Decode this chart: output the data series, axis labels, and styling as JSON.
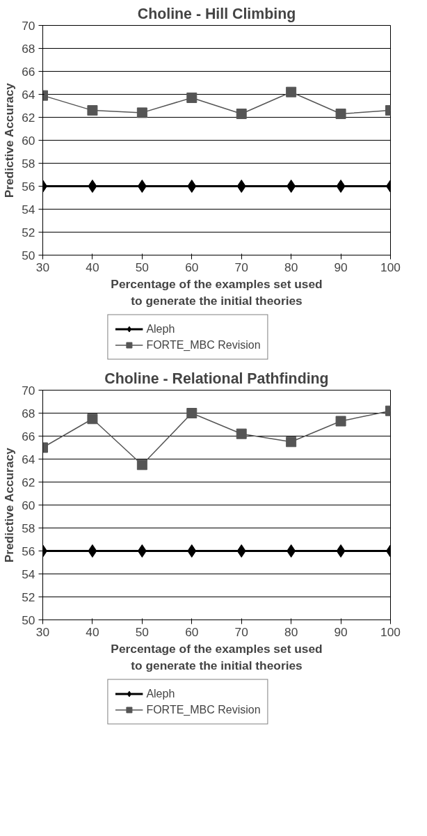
{
  "chart_data": [
    {
      "type": "line",
      "title": "Choline - Hill Climbing",
      "xlabel": "Percentage of the examples set used\nto generate the initial theories",
      "ylabel": "Predictive Accuracy",
      "x": [
        30,
        40,
        50,
        60,
        70,
        80,
        90,
        100
      ],
      "xlim": [
        30,
        100
      ],
      "xticks": [
        30,
        40,
        50,
        60,
        70,
        80,
        90,
        100
      ],
      "ylim": [
        50,
        70
      ],
      "yticks": [
        50,
        52,
        54,
        56,
        58,
        60,
        62,
        64,
        66,
        68,
        70
      ],
      "grid": "y",
      "legend": "bottom",
      "series": [
        {
          "name": "Aleph",
          "color": "#000000",
          "marker": "diamond",
          "values": [
            56,
            56,
            56,
            56,
            56,
            56,
            56,
            56
          ]
        },
        {
          "name": "FORTE_MBC Revision",
          "color": "#555555",
          "marker": "square",
          "values": [
            63.9,
            62.6,
            62.4,
            63.7,
            62.3,
            64.2,
            62.3,
            62.6
          ]
        }
      ]
    },
    {
      "type": "line",
      "title": "Choline - Relational Pathfinding",
      "xlabel": "Percentage of the examples set used\nto generate the initial theories",
      "ylabel": "Predictive Accuracy",
      "x": [
        30,
        40,
        50,
        60,
        70,
        80,
        90,
        100
      ],
      "xlim": [
        30,
        100
      ],
      "xticks": [
        30,
        40,
        50,
        60,
        70,
        80,
        90,
        100
      ],
      "ylim": [
        50,
        70
      ],
      "yticks": [
        50,
        52,
        54,
        56,
        58,
        60,
        62,
        64,
        66,
        68,
        70
      ],
      "grid": "y",
      "legend": "bottom",
      "series": [
        {
          "name": "Aleph",
          "color": "#000000",
          "marker": "diamond",
          "values": [
            56,
            56,
            56,
            56,
            56,
            56,
            56,
            56
          ]
        },
        {
          "name": "FORTE_MBC Revision",
          "color": "#555555",
          "marker": "square",
          "values": [
            65.0,
            67.5,
            63.5,
            68.0,
            66.2,
            65.5,
            67.3,
            68.2
          ]
        }
      ]
    }
  ]
}
